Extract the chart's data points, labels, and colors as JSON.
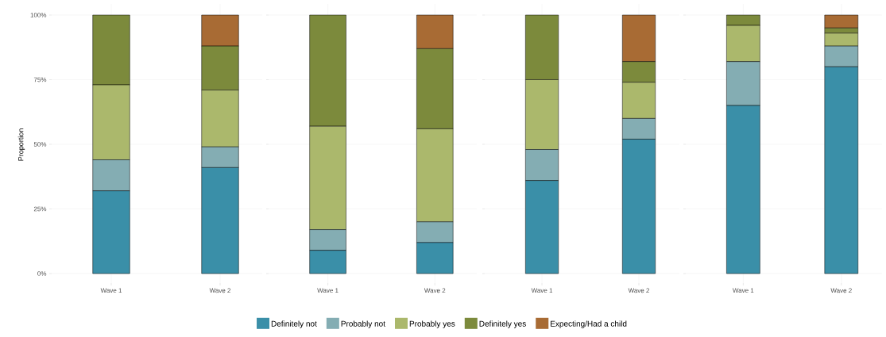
{
  "chart_data": [
    {
      "type": "bar",
      "stacked": true,
      "ylabel": "Proportion",
      "categories": [
        "Wave 1",
        "Wave 2"
      ],
      "ylim": [
        0,
        100
      ],
      "yticks": [
        {
          "value": 0,
          "label": "0%"
        },
        {
          "value": 25,
          "label": "25%"
        },
        {
          "value": 50,
          "label": "50%"
        },
        {
          "value": 75,
          "label": "75%"
        },
        {
          "value": 100,
          "label": "100%"
        }
      ],
      "grid": true,
      "legend": "bottom",
      "series": [
        {
          "name": "Definitely not",
          "color": "#3a8fa8",
          "values": [
            32,
            41
          ]
        },
        {
          "name": "Probably not",
          "color": "#84adb3",
          "values": [
            12,
            8
          ]
        },
        {
          "name": "Probably yes",
          "color": "#abb86c",
          "values": [
            29,
            22
          ]
        },
        {
          "name": "Definitely yes",
          "color": "#7c8a3c",
          "values": [
            27,
            17
          ]
        },
        {
          "name": "Expecting/Had a child",
          "color": "#a86b34",
          "values": [
            null,
            12
          ]
        }
      ]
    },
    {
      "type": "bar",
      "stacked": true,
      "categories": [
        "Wave 1",
        "Wave 2"
      ],
      "ylim": [
        0,
        100
      ],
      "yticks": [
        0,
        25,
        50,
        75,
        100
      ],
      "grid": true,
      "tick_labels": "x",
      "series": [
        {
          "color": "#3a8fa8",
          "values": [
            9,
            12
          ]
        },
        {
          "color": "#84adb3",
          "values": [
            8,
            8
          ]
        },
        {
          "color": "#abb86c",
          "values": [
            40,
            36
          ]
        },
        {
          "color": "#7c8a3c",
          "values": [
            43,
            31
          ]
        },
        {
          "color": "#a86b34",
          "values": [
            null,
            13
          ]
        }
      ]
    },
    {
      "type": "bar",
      "stacked": true,
      "categories": [
        "Wave 1",
        "Wave 2"
      ],
      "ylim": [
        0,
        100
      ],
      "yticks": [
        0,
        25,
        50,
        75,
        100
      ],
      "grid": true,
      "tick_labels": "x",
      "series": [
        {
          "color": "#3a8fa8",
          "values": [
            36,
            52
          ]
        },
        {
          "color": "#84adb3",
          "values": [
            12,
            8
          ]
        },
        {
          "color": "#abb86c",
          "values": [
            27,
            14
          ]
        },
        {
          "color": "#7c8a3c",
          "values": [
            25,
            8
          ]
        },
        {
          "color": "#a86b34",
          "values": [
            null,
            18
          ]
        }
      ]
    },
    {
      "type": "bar",
      "stacked": true,
      "categories": [
        "Wave 1",
        "Wave 2"
      ],
      "ylim": [
        0,
        100
      ],
      "yticks": [
        0,
        25,
        50,
        75,
        100
      ],
      "grid": true,
      "tick_labels": "x",
      "series": [
        {
          "color": "#3a8fa8",
          "values": [
            65,
            80
          ]
        },
        {
          "color": "#84adb3",
          "values": [
            17,
            8
          ]
        },
        {
          "color": "#abb86c",
          "values": [
            14,
            5
          ]
        },
        {
          "color": "#7c8a3c",
          "values": [
            4,
            2
          ]
        },
        {
          "color": "#a86b34",
          "values": [
            null,
            5
          ]
        }
      ]
    }
  ]
}
